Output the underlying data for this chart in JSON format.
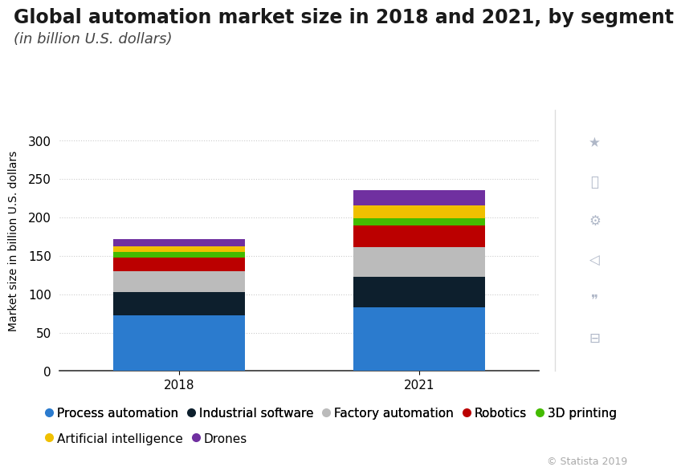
{
  "title": "Global automation market size in 2018 and 2021, by segment",
  "subtitle": "(in billion U.S. dollars)",
  "ylabel": "Market size in billion U.S. dollars",
  "categories": [
    "2018",
    "2021"
  ],
  "segments": [
    {
      "name": "Process automation",
      "values": [
        72,
        83
      ],
      "color": "#2b7bce"
    },
    {
      "name": "Industrial software",
      "values": [
        31,
        40
      ],
      "color": "#0d1f2d"
    },
    {
      "name": "Factory automation",
      "values": [
        27,
        38
      ],
      "color": "#bbbbbb"
    },
    {
      "name": "Robotics",
      "values": [
        18,
        28
      ],
      "color": "#bb0000"
    },
    {
      "name": "3D printing",
      "values": [
        7,
        10
      ],
      "color": "#44bb00"
    },
    {
      "name": "Artificial intelligence",
      "values": [
        7,
        17
      ],
      "color": "#f0c000"
    },
    {
      "name": "Drones",
      "values": [
        10,
        19
      ],
      "color": "#7030a0"
    }
  ],
  "ylim": [
    0,
    340
  ],
  "yticks": [
    0,
    50,
    100,
    150,
    200,
    250,
    300
  ],
  "bar_width": 0.55,
  "background_color": "#ffffff",
  "plot_bg_color": "#ffffff",
  "grid_color": "#cccccc",
  "title_fontsize": 17,
  "subtitle_fontsize": 13,
  "tick_fontsize": 11,
  "ylabel_fontsize": 10,
  "legend_fontsize": 11,
  "statista_text": "© Statista 2019",
  "title_color": "#1a1a1a",
  "subtitle_color": "#444444",
  "right_panel_color": "#e8e8e8",
  "icon_color": "#b0b8c8"
}
